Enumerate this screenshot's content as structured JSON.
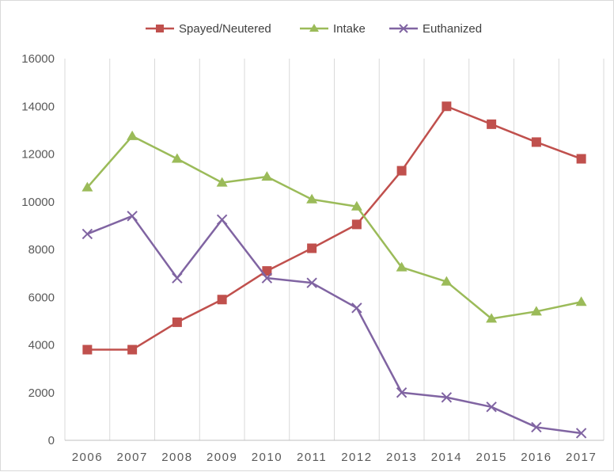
{
  "chart_data": {
    "type": "line",
    "categories": [
      "2006",
      "2007",
      "2008",
      "2009",
      "2010",
      "2011",
      "2012",
      "2013",
      "2014",
      "2015",
      "2016",
      "2017"
    ],
    "ylim": [
      0,
      16000
    ],
    "yticks": [
      0,
      2000,
      4000,
      6000,
      8000,
      10000,
      12000,
      14000,
      16000
    ],
    "grid": {
      "vertical": true,
      "horizontal": false
    },
    "legend_position": "top",
    "series": [
      {
        "name": "Spayed/Neutered",
        "color": "#c0504d",
        "marker": "square",
        "values": [
          3800,
          3800,
          4950,
          5900,
          7100,
          8050,
          9050,
          11300,
          14000,
          13250,
          12500,
          11800
        ]
      },
      {
        "name": "Intake",
        "color": "#9bbb59",
        "marker": "triangle",
        "values": [
          10600,
          12750,
          11800,
          10800,
          11050,
          10100,
          9800,
          7250,
          6650,
          5100,
          5400,
          5800
        ]
      },
      {
        "name": "Euthanized",
        "color": "#8064a2",
        "marker": "x",
        "values": [
          8650,
          9400,
          6800,
          9250,
          6800,
          6600,
          5550,
          2000,
          1800,
          1400,
          550,
          300
        ]
      }
    ]
  }
}
